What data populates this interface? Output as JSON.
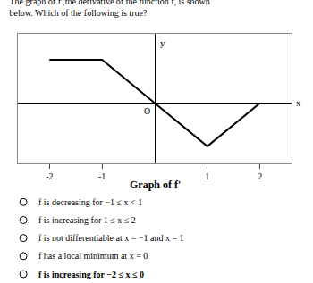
{
  "chart_data": {
    "type": "line",
    "title": "The graph of f′,the derivative of the function f, is shown below. Which of the following is true?",
    "x": [
      -2,
      -1,
      0,
      1,
      2
    ],
    "values": [
      2,
      2,
      0,
      -2,
      0
    ],
    "color": "#000000",
    "xlabel": "x",
    "ylabel": "y",
    "xlim": [
      -2.6,
      2.6
    ],
    "ylim": [
      -2.8,
      3.2
    ],
    "xticks": [
      -2,
      -1,
      1,
      2
    ],
    "yticks": [],
    "tick_labels": "x",
    "grid": false,
    "annotations": [
      "O",
      "Graph of f′",
      "f is decreasing for −1 ≤ x < 1",
      "f is increasing for 1 ≤ x ≤ 2",
      "f is not differentiable at x = −1 and x = 1",
      "f has a local minimum at x = 0",
      "f is increasing for −2 ≤ x ≤ 0"
    ]
  }
}
